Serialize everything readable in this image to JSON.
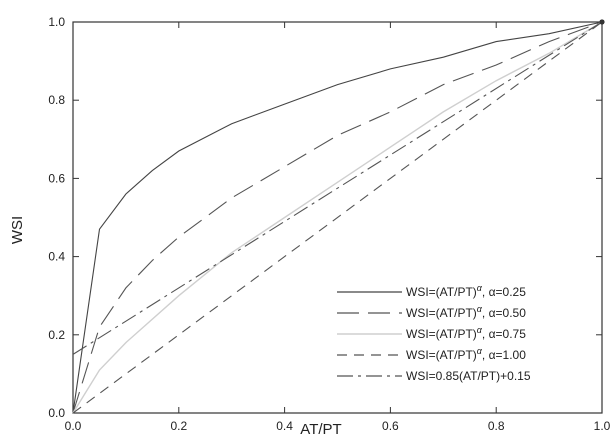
{
  "chart_data": {
    "type": "line",
    "title": "",
    "xlabel": "AT/PT",
    "ylabel": "WSI",
    "xlim": [
      0.0,
      1.0
    ],
    "ylim": [
      0.0,
      1.0
    ],
    "xticks": [
      "0.0",
      "0.2",
      "0.4",
      "0.6",
      "0.8",
      "1.0"
    ],
    "yticks": [
      "0.0",
      "0.2",
      "0.4",
      "0.6",
      "0.8",
      "1.0"
    ],
    "grid": false,
    "legend_position": "bottom-right",
    "series": [
      {
        "name": "WSI=(AT/PT)^α, α=0.25",
        "legend_base": "WSI=(AT/PT)",
        "legend_sup": "α",
        "legend_tail": ", α=0.25",
        "dash": "solid",
        "x": [
          0,
          0.05,
          0.1,
          0.15,
          0.2,
          0.3,
          0.4,
          0.5,
          0.6,
          0.7,
          0.8,
          0.9,
          1.0
        ],
        "y": [
          0.0,
          0.47,
          0.56,
          0.62,
          0.67,
          0.74,
          0.79,
          0.84,
          0.88,
          0.91,
          0.95,
          0.97,
          1.0
        ]
      },
      {
        "name": "WSI=(AT/PT)^α, α=0.50",
        "legend_base": "WSI=(AT/PT)",
        "legend_sup": "α",
        "legend_tail": ", α=0.50",
        "dash": "long",
        "x": [
          0,
          0.05,
          0.1,
          0.15,
          0.2,
          0.3,
          0.4,
          0.5,
          0.6,
          0.7,
          0.8,
          0.9,
          1.0
        ],
        "y": [
          0.0,
          0.22,
          0.32,
          0.39,
          0.45,
          0.55,
          0.63,
          0.71,
          0.77,
          0.84,
          0.89,
          0.95,
          1.0
        ]
      },
      {
        "name": "WSI=(AT/PT)^α, α=0.75",
        "legend_base": "WSI=(AT/PT)",
        "legend_sup": "α",
        "legend_tail": ", α=0.75",
        "dash": "faint",
        "x": [
          0,
          0.05,
          0.1,
          0.2,
          0.3,
          0.4,
          0.5,
          0.6,
          0.7,
          0.8,
          0.9,
          1.0
        ],
        "y": [
          0.0,
          0.11,
          0.18,
          0.3,
          0.41,
          0.5,
          0.59,
          0.68,
          0.77,
          0.85,
          0.92,
          1.0
        ]
      },
      {
        "name": "WSI=(AT/PT)^α, α=1.00",
        "legend_base": "WSI=(AT/PT)",
        "legend_sup": "α",
        "legend_tail": ", α=1.00",
        "dash": "dash",
        "x": [
          0,
          1.0
        ],
        "y": [
          0.0,
          1.0
        ]
      },
      {
        "name": "WSI=0.85(AT/PT)+0.15",
        "legend_base": "WSI=0.85(AT/PT)+0.15",
        "legend_sup": "",
        "legend_tail": "",
        "dash": "dashdot",
        "x": [
          0,
          1.0
        ],
        "y": [
          0.15,
          1.0
        ]
      }
    ]
  }
}
